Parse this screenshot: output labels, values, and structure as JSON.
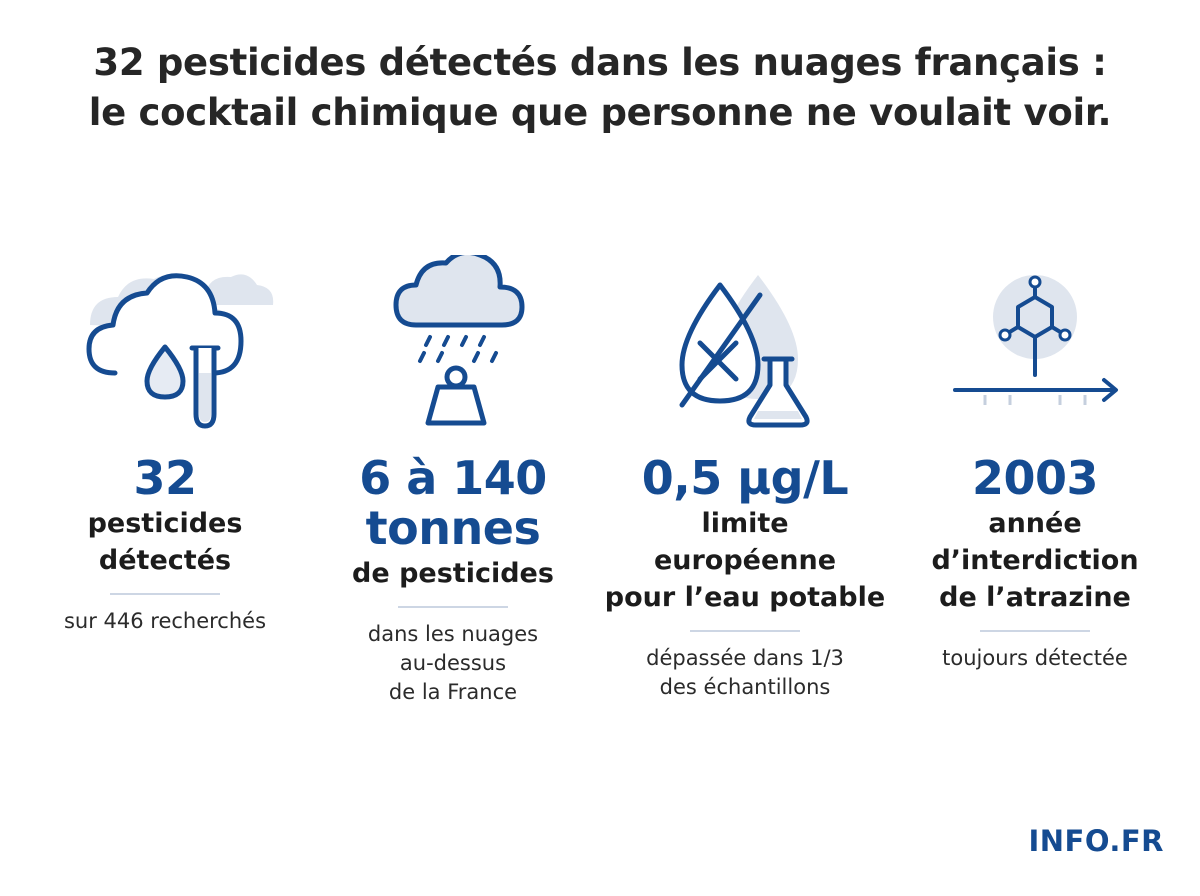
{
  "title": {
    "line1": "32 pesticides détectés dans les nuages français :",
    "line2": "le cocktail chimique que personne ne voulait voir."
  },
  "stats": [
    {
      "icon": "cloud-test-tube-icon",
      "value": "32",
      "value_line2": "",
      "desc": [
        "pesticides",
        "détectés"
      ],
      "note": [
        "sur 446 recherchés"
      ]
    },
    {
      "icon": "rain-cloud-weight-icon",
      "value": "6 à 140",
      "value_line2": "tonnes",
      "desc": [
        "de pesticides"
      ],
      "note": [
        "dans les nuages",
        "au-dessus",
        "de la France"
      ]
    },
    {
      "icon": "crossed-drop-flask-icon",
      "value": "0,5 µg/L",
      "value_line2": "",
      "desc": [
        "limite",
        "européenne",
        "pour l’eau potable"
      ],
      "note": [
        "dépassée dans 1/3",
        "des échantillons"
      ]
    },
    {
      "icon": "molecule-timeline-icon",
      "value": "2003",
      "value_line2": "",
      "desc": [
        "année",
        "d’interdiction",
        "de l’atrazine"
      ],
      "note": [
        "toujours détectée"
      ]
    }
  ],
  "logo": "INFO.FR",
  "colors": {
    "accent": "#154b91",
    "light": "#dde4ef",
    "text": "#262626"
  }
}
